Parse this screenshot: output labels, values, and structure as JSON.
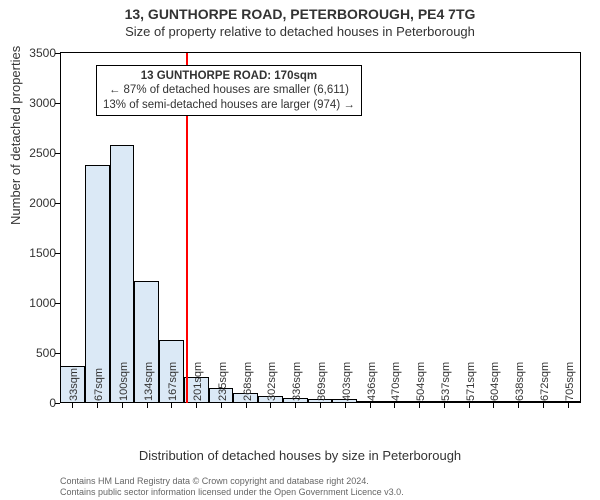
{
  "header": {
    "title": "13, GUNTHORPE ROAD, PETERBOROUGH, PE4 7TG",
    "subtitle": "Size of property relative to detached houses in Peterborough"
  },
  "chart": {
    "type": "histogram",
    "ylabel": "Number of detached properties",
    "xlabel": "Distribution of detached houses by size in Peterborough",
    "ylim": [
      0,
      3500
    ],
    "ytick_step": 500,
    "background_color": "#ffffff",
    "axis_color": "#000000",
    "bar_fill": "#dbe9f6",
    "bar_border": "#000000",
    "ref_line_color": "#ff0000",
    "ref_line_position_sqm": 170,
    "categories": [
      "33sqm",
      "67sqm",
      "100sqm",
      "134sqm",
      "167sqm",
      "201sqm",
      "235sqm",
      "268sqm",
      "302sqm",
      "336sqm",
      "369sqm",
      "403sqm",
      "436sqm",
      "470sqm",
      "504sqm",
      "537sqm",
      "571sqm",
      "604sqm",
      "638sqm",
      "672sqm",
      "705sqm"
    ],
    "values": [
      370,
      2380,
      2580,
      1220,
      630,
      260,
      150,
      100,
      70,
      55,
      45,
      40,
      5,
      5,
      2,
      2,
      2,
      1,
      1,
      1,
      1
    ],
    "annotation": {
      "line1": "13 GUNTHORPE ROAD: 170sqm",
      "line2": "← 87% of detached houses are smaller (6,611)",
      "line3": "13% of semi-detached houses are larger (974) →"
    }
  },
  "footer": {
    "line1": "Contains HM Land Registry data © Crown copyright and database right 2024.",
    "line2": "Contains public sector information licensed under the Open Government Licence v3.0."
  }
}
